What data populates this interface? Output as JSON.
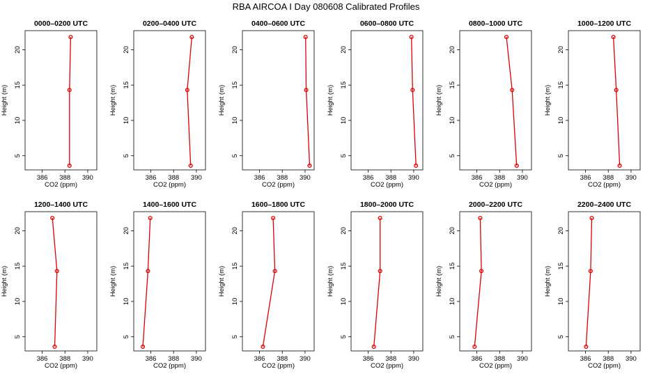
{
  "title": "RBA AIRCOA I  Day 080608  Calibrated Profiles",
  "colors": {
    "line": "#dd0000",
    "frame": "#000000",
    "background": "#ffffff"
  },
  "chart_data": {
    "type": "line",
    "layout": "grid 2x6",
    "xlabel": "CO2 (ppm)",
    "ylabel": "Height (m)",
    "xlim": [
      384.5,
      390.8
    ],
    "ylim": [
      3,
      22.7
    ],
    "xticks": [
      386,
      388,
      390
    ],
    "yticks": [
      5,
      10,
      15,
      20
    ],
    "grid": false,
    "heights": [
      3.6,
      14.3,
      21.8
    ],
    "panels": [
      {
        "title": "0000–0200 UTC",
        "co2": [
          388.4,
          388.4,
          388.5
        ]
      },
      {
        "title": "0200–0400 UTC",
        "co2": [
          389.5,
          389.2,
          389.6
        ]
      },
      {
        "title": "0400–0600 UTC",
        "co2": [
          390.4,
          390.1,
          390.05
        ]
      },
      {
        "title": "0600–0800 UTC",
        "co2": [
          390.2,
          389.9,
          389.8
        ]
      },
      {
        "title": "0800–1000 UTC",
        "co2": [
          389.5,
          389.1,
          388.6
        ]
      },
      {
        "title": "1000–1200 UTC",
        "co2": [
          389.0,
          388.7,
          388.45
        ]
      },
      {
        "title": "1200–1400 UTC",
        "co2": [
          387.1,
          387.3,
          386.9
        ]
      },
      {
        "title": "1400–1600 UTC",
        "co2": [
          385.3,
          385.75,
          385.95
        ]
      },
      {
        "title": "1600–1800 UTC",
        "co2": [
          386.3,
          387.35,
          387.2
        ]
      },
      {
        "title": "1800–2000 UTC",
        "co2": [
          386.5,
          387.05,
          387.05
        ]
      },
      {
        "title": "2000–2200 UTC",
        "co2": [
          385.8,
          386.4,
          386.3
        ]
      },
      {
        "title": "2200–2400 UTC",
        "co2": [
          386.05,
          386.45,
          386.55
        ]
      }
    ]
  }
}
